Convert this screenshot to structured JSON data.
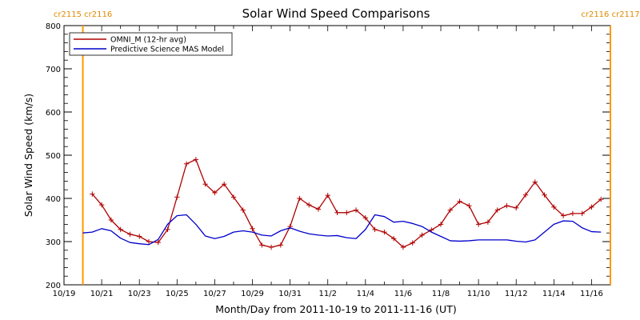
{
  "chart_data": {
    "type": "line",
    "title": "Solar Wind Speed Comparisons",
    "xlabel": "Month/Day from 2011-10-19 to 2011-11-16 (UT)",
    "ylabel": "Solar Wind Speed (km/s)",
    "xlim": [
      "2011-10-19T00:00",
      "2011-11-16T24:00"
    ],
    "ylim": [
      200,
      800
    ],
    "x_tick_labels": [
      "10/19",
      "10/21",
      "10/23",
      "10/25",
      "10/27",
      "10/29",
      "10/31",
      "11/2",
      "11/4",
      "11/6",
      "11/8",
      "11/10",
      "11/12",
      "11/14",
      "11/16"
    ],
    "y_tick_labels": [
      "200",
      "300",
      "400",
      "500",
      "600",
      "700",
      "800"
    ],
    "legend_position": "top-left",
    "grid": false,
    "carrington_markers": [
      {
        "label": "cr2115 cr2116",
        "x": "2011-10-20T00:00"
      },
      {
        "label": "cr2116 cr2117",
        "x": "2011-11-16T24:00"
      }
    ],
    "colors": {
      "omni": "#b00000",
      "model": "#0000cc",
      "carrington": "#ff9900",
      "carrington_text": "#e08a00"
    },
    "series": [
      {
        "name": "OMNI_M (12-hr avg)",
        "marker": "plus",
        "x": [
          "2011-10-20T12:00",
          "2011-10-21T00:00",
          "2011-10-21T12:00",
          "2011-10-22T00:00",
          "2011-10-22T12:00",
          "2011-10-23T00:00",
          "2011-10-23T12:00",
          "2011-10-24T00:00",
          "2011-10-24T12:00",
          "2011-10-25T00:00",
          "2011-10-25T12:00",
          "2011-10-26T00:00",
          "2011-10-26T12:00",
          "2011-10-27T00:00",
          "2011-10-27T12:00",
          "2011-10-28T00:00",
          "2011-10-28T12:00",
          "2011-10-29T00:00",
          "2011-10-29T12:00",
          "2011-10-30T00:00",
          "2011-10-30T12:00",
          "2011-10-31T00:00",
          "2011-10-31T12:00",
          "2011-11-01T00:00",
          "2011-11-01T12:00",
          "2011-11-02T00:00",
          "2011-11-02T12:00",
          "2011-11-03T00:00",
          "2011-11-03T12:00",
          "2011-11-04T00:00",
          "2011-11-04T12:00",
          "2011-11-05T00:00",
          "2011-11-05T12:00",
          "2011-11-06T00:00",
          "2011-11-06T12:00",
          "2011-11-07T00:00",
          "2011-11-07T12:00",
          "2011-11-08T00:00",
          "2011-11-08T12:00",
          "2011-11-09T00:00",
          "2011-11-09T12:00",
          "2011-11-10T00:00",
          "2011-11-10T12:00",
          "2011-11-11T00:00",
          "2011-11-11T12:00",
          "2011-11-12T00:00",
          "2011-11-12T12:00",
          "2011-11-13T00:00",
          "2011-11-13T12:00",
          "2011-11-14T00:00",
          "2011-11-14T12:00",
          "2011-11-15T00:00",
          "2011-11-15T12:00",
          "2011-11-16T00:00",
          "2011-11-16T12:00"
        ],
        "y": [
          410,
          385,
          350,
          328,
          317,
          312,
          300,
          298,
          328,
          403,
          480,
          490,
          433,
          413,
          433,
          403,
          373,
          330,
          292,
          287,
          292,
          335,
          400,
          385,
          375,
          407,
          367,
          367,
          373,
          355,
          328,
          322,
          307,
          287,
          297,
          315,
          327,
          340,
          373,
          393,
          383,
          340,
          345,
          373,
          383,
          378,
          408,
          438,
          408,
          380,
          360,
          365,
          365,
          380,
          398
        ]
      },
      {
        "name": "Predictive Science MAS Model",
        "marker": "none",
        "x": [
          "2011-10-20T00:00",
          "2011-10-20T12:00",
          "2011-10-21T00:00",
          "2011-10-21T12:00",
          "2011-10-22T00:00",
          "2011-10-22T12:00",
          "2011-10-23T00:00",
          "2011-10-23T12:00",
          "2011-10-24T00:00",
          "2011-10-24T12:00",
          "2011-10-25T00:00",
          "2011-10-25T12:00",
          "2011-10-26T00:00",
          "2011-10-26T12:00",
          "2011-10-27T00:00",
          "2011-10-27T12:00",
          "2011-10-28T00:00",
          "2011-10-28T12:00",
          "2011-10-29T00:00",
          "2011-10-29T12:00",
          "2011-10-30T00:00",
          "2011-10-30T12:00",
          "2011-10-31T00:00",
          "2011-10-31T12:00",
          "2011-11-01T00:00",
          "2011-11-01T12:00",
          "2011-11-02T00:00",
          "2011-11-02T12:00",
          "2011-11-03T00:00",
          "2011-11-03T12:00",
          "2011-11-04T00:00",
          "2011-11-04T12:00",
          "2011-11-05T00:00",
          "2011-11-05T12:00",
          "2011-11-06T00:00",
          "2011-11-06T12:00",
          "2011-11-07T00:00",
          "2011-11-07T12:00",
          "2011-11-08T00:00",
          "2011-11-08T12:00",
          "2011-11-09T00:00",
          "2011-11-09T12:00",
          "2011-11-10T00:00",
          "2011-11-10T12:00",
          "2011-11-11T00:00",
          "2011-11-11T12:00",
          "2011-11-12T00:00",
          "2011-11-12T12:00",
          "2011-11-13T00:00",
          "2011-11-13T12:00",
          "2011-11-14T00:00",
          "2011-11-14T12:00",
          "2011-11-15T00:00",
          "2011-11-15T12:00",
          "2011-11-16T00:00",
          "2011-11-16T12:00"
        ],
        "y": [
          320,
          322,
          330,
          325,
          308,
          298,
          295,
          293,
          305,
          340,
          360,
          362,
          340,
          313,
          307,
          312,
          322,
          325,
          322,
          315,
          313,
          325,
          332,
          324,
          318,
          315,
          313,
          314,
          309,
          307,
          328,
          362,
          358,
          345,
          347,
          342,
          335,
          322,
          312,
          302,
          301,
          302,
          304,
          304,
          304,
          304,
          301,
          299,
          304,
          322,
          340,
          348,
          347,
          332,
          323,
          322
        ]
      }
    ]
  }
}
